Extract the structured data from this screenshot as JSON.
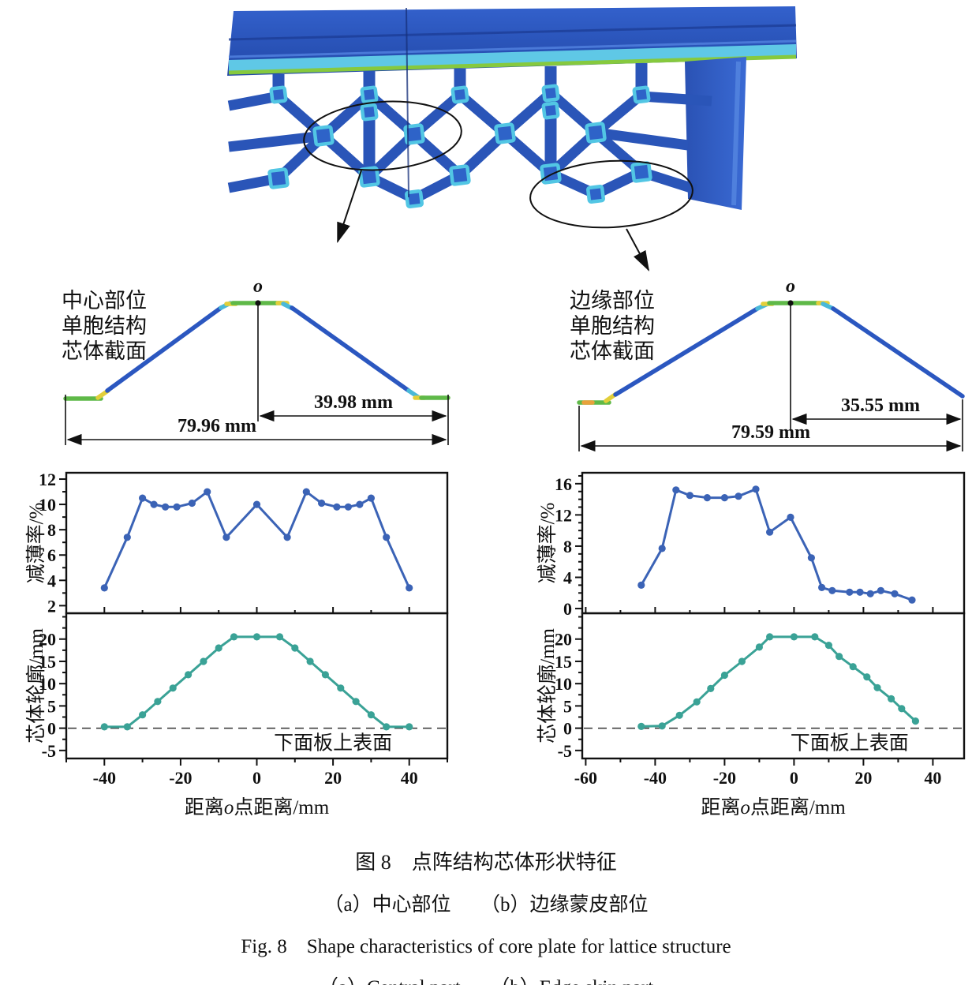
{
  "figure": {
    "caption_zh": "图 8　点阵结构芯体形状特征",
    "caption_sub_zh": "（a）中心部位　　（b）边缘蒙皮部位",
    "caption_en": "Fig. 8　Shape characteristics of core plate for lattice structure",
    "caption_sub_en": "（a）Central part　　（b）Edge skin part"
  },
  "sections": {
    "central": {
      "label_lines": [
        "中心部位",
        "单胞结构",
        "芯体截面"
      ],
      "origin_label": "o",
      "half_width": "39.98 mm",
      "full_width": "79.96 mm"
    },
    "edge": {
      "label_lines": [
        "边缘部位",
        "单胞结构",
        "芯体截面"
      ],
      "origin_label": "o",
      "half_width": "35.55 mm",
      "full_width": "79.59 mm"
    }
  },
  "colors": {
    "fea_strut_blue": "#2a55b8",
    "fea_node_fill": "#2e63c8",
    "fea_node_cyan": "#52c6e4",
    "band_blue": "#2f5cc4",
    "band_blue_dark": "#2248a8",
    "stripe_cyan": "#5fc8e6",
    "stripe_green": "#86c93e",
    "profile_blue": "#2b57c0",
    "profile_green": "#5fb948",
    "profile_yellow": "#e2cf3a",
    "profile_cyan": "#49b9d8",
    "profile_orange": "#e8a23c",
    "series_blue": "#3b63b6",
    "series_teal": "#3aa296",
    "axis_black": "#111111"
  },
  "chart_data": [
    {
      "id": "central_thinning_rate",
      "type": "line",
      "pair": "central",
      "panel": "top",
      "title": "",
      "ylabel": "减薄率/%",
      "x": [
        -40,
        -34,
        -30,
        -27,
        -24,
        -21,
        -17,
        -13,
        -8,
        0,
        8,
        13,
        17,
        21,
        24,
        27,
        30,
        34,
        40
      ],
      "y": [
        3.4,
        7.4,
        10.5,
        10.0,
        9.8,
        9.8,
        10.1,
        11.0,
        7.4,
        10.0,
        7.4,
        11.0,
        10.1,
        9.8,
        9.8,
        10.0,
        10.5,
        7.4,
        3.4
      ],
      "xlim": [
        -50,
        50
      ],
      "xticks": [
        -40,
        -20,
        0,
        20,
        40
      ],
      "xtick_minor": 10,
      "ylim": [
        1.4,
        12.5
      ],
      "yticks": [
        2,
        4,
        6,
        8,
        10,
        12
      ],
      "ytick_minor": 1,
      "line_color": "#3b63b6"
    },
    {
      "id": "central_core_profile",
      "type": "line",
      "pair": "central",
      "panel": "bottom",
      "title": "",
      "ylabel": "芯体轮廓/mm",
      "xlabel_pre": "距离",
      "xlabel_italic": "o",
      "xlabel_post": "点距离/mm",
      "zero_line_label": "下面板上表面",
      "x": [
        -40,
        -34,
        -30,
        -26,
        -22,
        -18,
        -14,
        -10,
        -6,
        0,
        6,
        10,
        14,
        18,
        22,
        26,
        30,
        34,
        40
      ],
      "y": [
        0.3,
        0.3,
        3.0,
        6.0,
        9.0,
        12.0,
        15.0,
        18.0,
        20.5,
        20.5,
        20.5,
        18.0,
        15.0,
        12.0,
        9.0,
        6.0,
        3.0,
        0.3,
        0.3
      ],
      "xlim": [
        -50,
        50
      ],
      "xticks": [
        -40,
        -20,
        0,
        20,
        40
      ],
      "xtick_minor": 10,
      "ylim": [
        -6.8,
        25.8
      ],
      "yticks": [
        -5,
        0,
        5,
        10,
        15,
        20
      ],
      "ytick_minor": 2.5,
      "line_color": "#3aa296"
    },
    {
      "id": "edge_thinning_rate",
      "type": "line",
      "pair": "edge",
      "panel": "top",
      "title": "",
      "ylabel": "减薄率/%",
      "x": [
        -44,
        -38,
        -34,
        -30,
        -25,
        -20,
        -16,
        -11,
        -7,
        -1,
        5,
        8,
        11,
        16,
        19,
        22,
        25,
        29,
        34
      ],
      "y": [
        3.0,
        7.7,
        15.2,
        14.5,
        14.2,
        14.2,
        14.4,
        15.3,
        9.8,
        11.7,
        6.5,
        2.7,
        2.3,
        2.1,
        2.1,
        1.9,
        2.3,
        1.9,
        1.1
      ],
      "xlim": [
        -61,
        49
      ],
      "xticks": [
        -60,
        -40,
        -20,
        0,
        20,
        40
      ],
      "xtick_minor": 10,
      "ylim": [
        -0.6,
        17.4
      ],
      "yticks": [
        0,
        4,
        8,
        12,
        16
      ],
      "ytick_minor": 1,
      "line_color": "#3b63b6"
    },
    {
      "id": "edge_core_profile",
      "type": "line",
      "pair": "edge",
      "panel": "bottom",
      "title": "",
      "ylabel": "芯体轮廓/mm",
      "xlabel_pre": "距离",
      "xlabel_italic": "o",
      "xlabel_post": "点距离/mm",
      "zero_line_label": "下面板上表面",
      "x": [
        -44,
        -38,
        -33,
        -28,
        -24,
        -20,
        -15,
        -10,
        -7,
        0,
        6,
        10,
        13,
        17,
        21,
        24,
        28,
        31,
        35
      ],
      "y": [
        0.4,
        0.5,
        2.9,
        5.9,
        8.9,
        11.9,
        15.0,
        18.2,
        20.5,
        20.5,
        20.5,
        18.6,
        16.1,
        13.8,
        11.5,
        9.1,
        6.6,
        4.4,
        1.6
      ],
      "xlim": [
        -61,
        49
      ],
      "xticks": [
        -60,
        -40,
        -20,
        0,
        20,
        40
      ],
      "xtick_minor": 10,
      "ylim": [
        -6.8,
        25.8
      ],
      "yticks": [
        -5,
        0,
        5,
        10,
        15,
        20
      ],
      "ytick_minor": 2.5,
      "line_color": "#3aa296"
    }
  ]
}
